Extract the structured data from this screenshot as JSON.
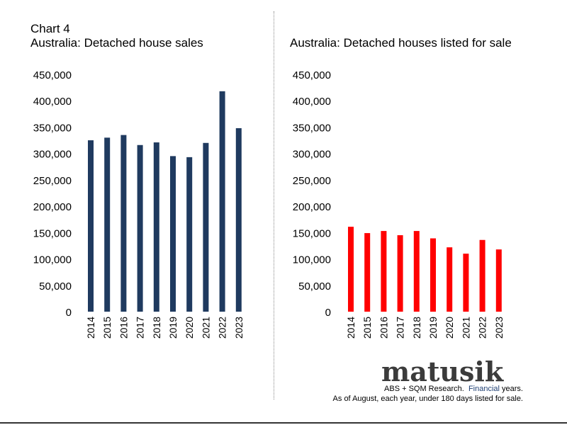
{
  "header": {
    "chart_number": "Chart 4"
  },
  "brand": {
    "name": "matusik"
  },
  "footer": {
    "source_part1": "ABS + SQM Research.",
    "source_part2": "Financial",
    "source_part3": "years.",
    "note": "As of August, each year, under 180 days listed for sale."
  },
  "colors": {
    "left_bars": "#1f3a5f",
    "right_bars": "#ff0000"
  },
  "chart_data": [
    {
      "type": "bar",
      "title": "Australia: Detached house sales",
      "categories": [
        "2014",
        "2015",
        "2016",
        "2017",
        "2018",
        "2019",
        "2020",
        "2021",
        "2022",
        "2023"
      ],
      "values": [
        325000,
        330000,
        335000,
        316000,
        321000,
        295000,
        293000,
        320000,
        418000,
        348000
      ],
      "yticks": [
        "450,000",
        "400,000",
        "350,000",
        "300,000",
        "250,000",
        "200,000",
        "150,000",
        "100,000",
        "50,000",
        "0"
      ],
      "ylim": [
        0,
        450000
      ],
      "xlabel": "",
      "ylabel": "",
      "grid": false
    },
    {
      "type": "bar",
      "title": "Australia: Detached houses listed for sale",
      "categories": [
        "2014",
        "2015",
        "2016",
        "2017",
        "2018",
        "2019",
        "2020",
        "2021",
        "2022",
        "2023"
      ],
      "values": [
        161000,
        149000,
        153000,
        145000,
        153000,
        139000,
        122000,
        110000,
        136000,
        118000
      ],
      "yticks": [
        "450,000",
        "400,000",
        "350,000",
        "300,000",
        "250,000",
        "200,000",
        "150,000",
        "100,000",
        "50,000",
        "0"
      ],
      "ylim": [
        0,
        450000
      ],
      "xlabel": "",
      "ylabel": "",
      "grid": false
    }
  ]
}
